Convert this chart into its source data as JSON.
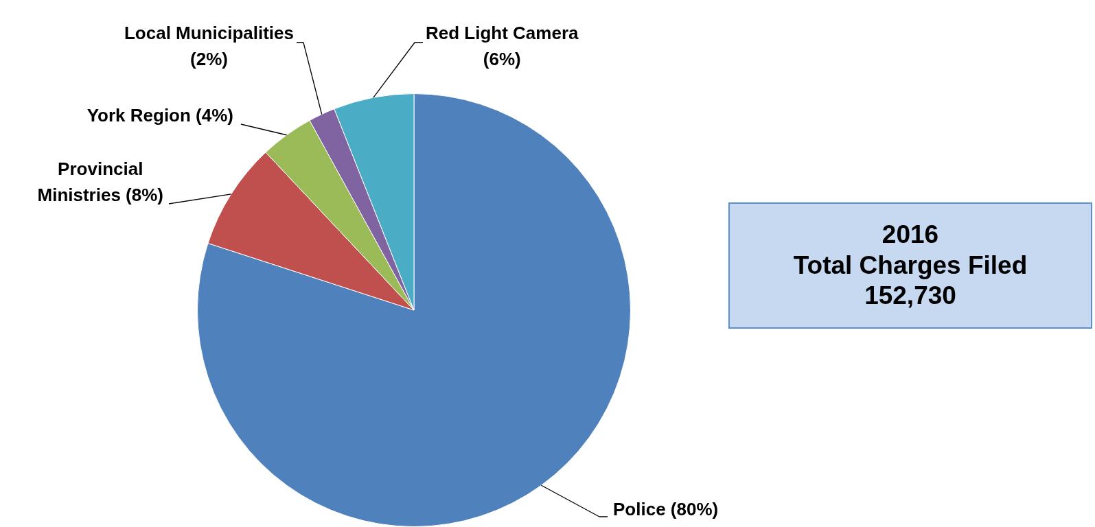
{
  "chart_data": {
    "type": "pie",
    "categories": [
      "Police (80%)",
      "Provincial Ministries (8%)",
      "York Region (4%)",
      "Local Municipalities (2%)",
      "Red Light Camera (6%)"
    ],
    "values": [
      80,
      8,
      4,
      2,
      6
    ],
    "colors": [
      "#4f81bd",
      "#c0504d",
      "#9bbb59",
      "#8064a2",
      "#4bacc6"
    ],
    "annotations": [
      "2016\nTotal Charges Filed\n152,730"
    ],
    "legend": false
  }
}
